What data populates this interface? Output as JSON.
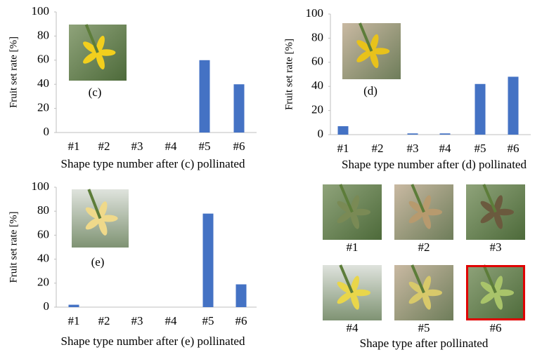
{
  "chart_data": [
    {
      "type": "bar",
      "annotation": "(c)",
      "y_label": "Fruit set rate [%]",
      "x_label": "Shape type number after (c) pollinated",
      "categories": [
        "#1",
        "#2",
        "#3",
        "#4",
        "#5",
        "#6"
      ],
      "values": [
        0,
        0,
        0,
        0,
        60,
        40
      ],
      "color": "#4472c4",
      "ylim": [
        0,
        100
      ],
      "yticks": [
        0,
        20,
        40,
        60,
        80,
        100
      ]
    },
    {
      "type": "bar",
      "annotation": "(d)",
      "y_label": "Fruit set rate [%]",
      "x_label": "Shape type number after (d) pollinated",
      "categories": [
        "#1",
        "#2",
        "#3",
        "#4",
        "#5",
        "#6"
      ],
      "values": [
        7,
        0,
        1,
        1,
        42,
        48
      ],
      "color": "#4472c4",
      "ylim": [
        0,
        100
      ],
      "yticks": [
        0,
        20,
        40,
        60,
        80,
        100
      ]
    },
    {
      "type": "bar",
      "annotation": "(e)",
      "y_label": "Fruit set rate [%]",
      "x_label": "Shape type number after (e) pollinated",
      "categories": [
        "#1",
        "#2",
        "#3",
        "#4",
        "#5",
        "#6"
      ],
      "values": [
        2,
        0,
        0,
        0,
        78,
        19
      ],
      "color": "#4472c4",
      "ylim": [
        0,
        100
      ],
      "yticks": [
        0,
        20,
        40,
        60,
        80,
        100
      ]
    }
  ],
  "image_panel": {
    "labels": [
      "#1",
      "#2",
      "#3",
      "#4",
      "#5",
      "#6"
    ],
    "caption": "Shape type after pollinated"
  }
}
